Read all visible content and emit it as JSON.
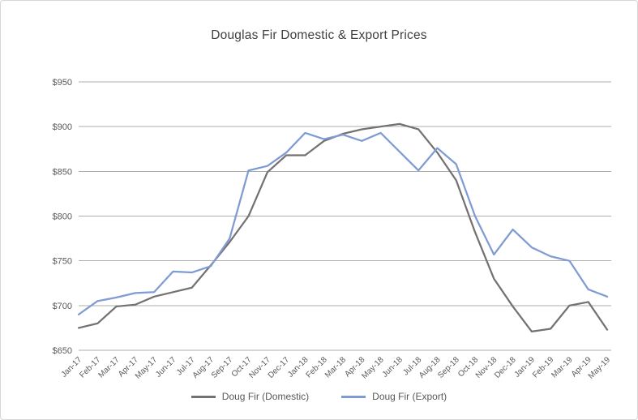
{
  "chart_data": {
    "type": "line",
    "title": "Douglas Fir Domestic & Export Prices",
    "xlabel": "",
    "ylabel": "",
    "ylim": [
      650,
      950
    ],
    "ytick_step": 50,
    "ytick_prefix": "$",
    "grid": true,
    "legend_position": "bottom",
    "gridline_color": "#adadad",
    "tick_label_color": "#595959",
    "categories": [
      "Jan-17",
      "Feb-17",
      "Mar-17",
      "Apr-17",
      "May-17",
      "Jun-17",
      "Jul-17",
      "Aug-17",
      "Sep-17",
      "Oct-17",
      "Nov-17",
      "Dec-17",
      "Jan-18",
      "Feb-18",
      "Mar-18",
      "Apr-18",
      "May-18",
      "Jun-18",
      "Jul-18",
      "Aug-18",
      "Sep-18",
      "Oct-18",
      "Nov-18",
      "Dec-18",
      "Jan-19",
      "Feb-19",
      "Mar-19",
      "Apr-19",
      "May-19"
    ],
    "series": [
      {
        "name": "Doug Fir (Domestic)",
        "color": "#767171",
        "values": [
          675,
          680,
          699,
          701,
          710,
          715,
          720,
          745,
          771,
          800,
          849,
          868,
          868,
          884,
          892,
          897,
          900,
          903,
          897,
          871,
          840,
          782,
          730,
          699,
          671,
          674,
          700,
          704,
          673
        ]
      },
      {
        "name": "Doug Fir (Export)",
        "color": "#7F9BD4",
        "values": [
          690,
          705,
          709,
          714,
          715,
          738,
          737,
          744,
          775,
          851,
          856,
          871,
          893,
          886,
          891,
          884,
          893,
          872,
          851,
          876,
          858,
          800,
          757,
          785,
          765,
          755,
          750,
          718,
          710
        ]
      }
    ]
  }
}
